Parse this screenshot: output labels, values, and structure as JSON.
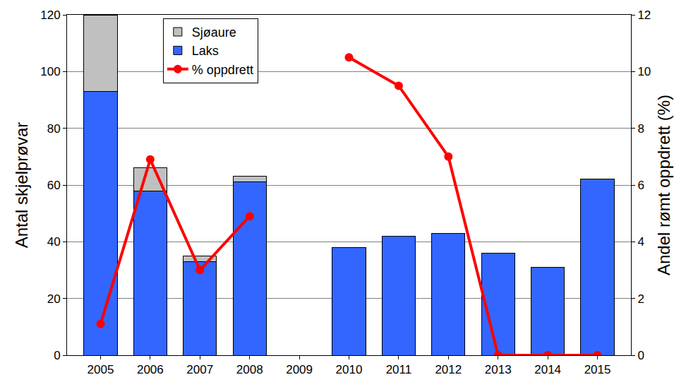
{
  "chart_data": {
    "type": "bar",
    "stacked": true,
    "categories": [
      "2005",
      "2006",
      "2007",
      "2008",
      "2009",
      "2010",
      "2011",
      "2012",
      "2013",
      "2014",
      "2015"
    ],
    "series": [
      {
        "name": "Sjøaure",
        "type": "bar",
        "color": "#c0c0c0",
        "values": [
          27,
          8,
          2,
          2,
          0,
          0,
          0,
          0,
          0,
          0,
          0
        ]
      },
      {
        "name": "Laks",
        "type": "bar",
        "color": "#3366ff",
        "values": [
          93,
          58,
          33,
          61,
          0,
          38,
          42,
          43,
          36,
          31,
          62
        ]
      },
      {
        "name": "% oppdrett",
        "type": "line",
        "color": "#ff0000",
        "marker": "circle",
        "axis": "y2",
        "values": [
          1.1,
          6.9,
          3.0,
          4.9,
          null,
          10.5,
          9.5,
          7.0,
          0,
          0,
          0
        ]
      }
    ],
    "y_label": "Antal skjelprøvar",
    "y2_label": "Andel rømt oppdrett (%)",
    "ylim": [
      0,
      120
    ],
    "yticks": [
      0,
      20,
      40,
      60,
      80,
      100,
      120
    ],
    "y2lim": [
      0,
      12
    ],
    "y2ticks": [
      0,
      2,
      4,
      6,
      8,
      10,
      12
    ],
    "grid": true,
    "legend": "upper left"
  }
}
